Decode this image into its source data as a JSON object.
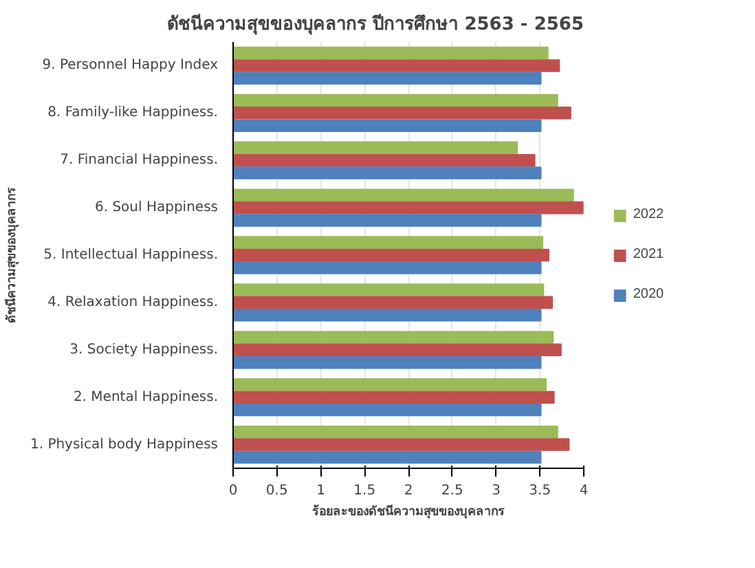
{
  "chart_data": {
    "type": "bar",
    "orientation": "horizontal",
    "title": "ดัชนีความสุขของบุคลากร ปีการศึกษา 2563 - 2565",
    "xlabel": "ร้อยละของดัชนีความสุขของบุคลากร",
    "ylabel": "ดัชนีความสุขของบุคลากร",
    "categories": [
      "9. Personnel Happy Index",
      "8. Family-like Happiness.",
      "7. Financial Happiness.",
      "6. Soul Happiness",
      "5. Intellectual Happiness.",
      "4. Relaxation Happiness.",
      "3. Society Happiness.",
      "2. Mental Happiness.",
      "1. Physical body Happiness"
    ],
    "series": [
      {
        "name": "2022",
        "color": "#9bbb59",
        "values": [
          3.59,
          3.7,
          3.24,
          3.88,
          3.53,
          3.54,
          3.65,
          3.57,
          3.7
        ]
      },
      {
        "name": "2021",
        "color": "#c0504d",
        "values": [
          3.72,
          3.85,
          3.44,
          3.99,
          3.6,
          3.64,
          3.74,
          3.66,
          3.83
        ]
      },
      {
        "name": "2020",
        "color": "#4f81bd",
        "values": [
          3.51,
          3.51,
          3.51,
          3.51,
          3.51,
          3.51,
          3.51,
          3.51,
          3.51
        ]
      }
    ],
    "xlim": [
      0,
      4
    ],
    "xticks": [
      0,
      0.5,
      1,
      1.5,
      2,
      2.5,
      3,
      3.5,
      4
    ],
    "grid": "x",
    "legend": "right"
  }
}
